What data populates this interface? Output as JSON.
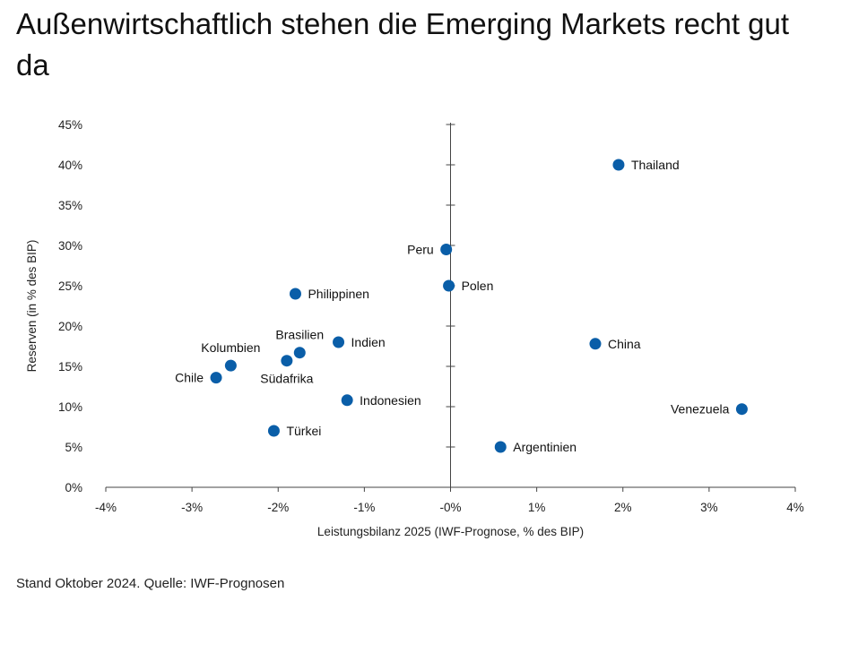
{
  "title": "Außenwirtschaftlich stehen die Emerging Markets recht gut da",
  "source": "Stand Oktober 2024. Quelle: IWF-Prognosen",
  "colors": {
    "point": "#0a5ea8",
    "axis": "#444444",
    "text": "#111111"
  },
  "chart_data": {
    "type": "scatter",
    "title": "Außenwirtschaftlich stehen die Emerging Markets recht gut da",
    "xlabel": "Leistungsbilanz 2025 (IWF-Prognose, % des BIP)",
    "ylabel": "Reserven (in % des BIP)",
    "xlim": [
      -4,
      4
    ],
    "ylim": [
      0,
      45
    ],
    "xticks": [
      -4,
      -3,
      -2,
      -1,
      0,
      1,
      2,
      3,
      4
    ],
    "xtick_labels": [
      "-4%",
      "-3%",
      "-2%",
      "-1%",
      "-0%",
      "1%",
      "2%",
      "3%",
      "4%"
    ],
    "yticks": [
      0,
      5,
      10,
      15,
      20,
      25,
      30,
      35,
      40,
      45
    ],
    "ytick_labels": [
      "0%",
      "5%",
      "10%",
      "15%",
      "20%",
      "25%",
      "30%",
      "35%",
      "40%",
      "45%"
    ],
    "grid": false,
    "points": [
      {
        "label": "Thailand",
        "x": 1.95,
        "y": 40.0,
        "pos": "right"
      },
      {
        "label": "Peru",
        "x": -0.05,
        "y": 29.5,
        "pos": "left"
      },
      {
        "label": "Polen",
        "x": -0.02,
        "y": 25.0,
        "pos": "right"
      },
      {
        "label": "Philippinen",
        "x": -1.8,
        "y": 24.0,
        "pos": "right"
      },
      {
        "label": "Indien",
        "x": -1.3,
        "y": 18.0,
        "pos": "right"
      },
      {
        "label": "Brasilien",
        "x": -1.75,
        "y": 16.7,
        "pos": "above"
      },
      {
        "label": "Südafrika",
        "x": -1.9,
        "y": 15.7,
        "pos": "below"
      },
      {
        "label": "Kolumbien",
        "x": -2.55,
        "y": 15.1,
        "pos": "above"
      },
      {
        "label": "Chile",
        "x": -2.72,
        "y": 13.6,
        "pos": "left"
      },
      {
        "label": "Indonesien",
        "x": -1.2,
        "y": 10.8,
        "pos": "right"
      },
      {
        "label": "Türkei",
        "x": -2.05,
        "y": 7.0,
        "pos": "right"
      },
      {
        "label": "China",
        "x": 1.68,
        "y": 17.8,
        "pos": "right"
      },
      {
        "label": "Venezuela",
        "x": 3.38,
        "y": 9.7,
        "pos": "left"
      },
      {
        "label": "Argentinien",
        "x": 0.58,
        "y": 5.0,
        "pos": "right"
      }
    ]
  }
}
